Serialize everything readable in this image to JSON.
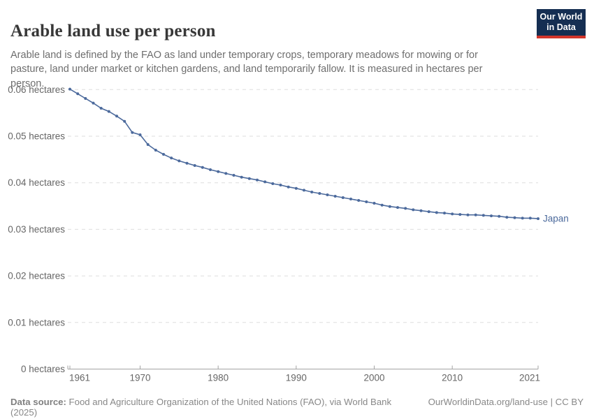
{
  "header": {
    "title": "Arable land use per person",
    "subtitle": "Arable land is defined by the FAO as land under temporary crops, temporary meadows for mowing or for pasture, land under market or kitchen gardens, and land temporarily fallow. It is measured in hectares per person.",
    "logo": {
      "line1": "Our World",
      "line2": "in Data",
      "bg_color": "#152e52",
      "stripe_color": "#d2352b"
    }
  },
  "chart_data": {
    "type": "line",
    "title": "Arable land use per person",
    "unit": "hectares",
    "xlim": [
      1961,
      2021
    ],
    "ylim": [
      0,
      0.06
    ],
    "grid": "horizontal-dashed",
    "legend_position": "end-of-line-label",
    "x_ticks": [
      {
        "year": 1961,
        "label": "1961"
      },
      {
        "year": 1970,
        "label": "1970"
      },
      {
        "year": 1980,
        "label": "1980"
      },
      {
        "year": 1990,
        "label": "1990"
      },
      {
        "year": 2000,
        "label": "2000"
      },
      {
        "year": 2010,
        "label": "2010"
      },
      {
        "year": 2021,
        "label": "2021"
      }
    ],
    "y_ticks": [
      {
        "value": 0,
        "label": "0 hectares"
      },
      {
        "value": 0.01,
        "label": "0.01 hectares"
      },
      {
        "value": 0.02,
        "label": "0.02 hectares"
      },
      {
        "value": 0.03,
        "label": "0.03 hectares"
      },
      {
        "value": 0.04,
        "label": "0.04 hectares"
      },
      {
        "value": 0.05,
        "label": "0.05 hectares"
      },
      {
        "value": 0.06,
        "label": "0.06 hectares"
      }
    ],
    "series": [
      {
        "name": "Japan",
        "color": "#4C6A9C",
        "x": [
          1961,
          1962,
          1963,
          1964,
          1965,
          1966,
          1967,
          1968,
          1969,
          1970,
          1971,
          1972,
          1973,
          1974,
          1975,
          1976,
          1977,
          1978,
          1979,
          1980,
          1981,
          1982,
          1983,
          1984,
          1985,
          1986,
          1987,
          1988,
          1989,
          1990,
          1991,
          1992,
          1993,
          1994,
          1995,
          1996,
          1997,
          1998,
          1999,
          2000,
          2001,
          2002,
          2003,
          2004,
          2005,
          2006,
          2007,
          2008,
          2009,
          2010,
          2011,
          2012,
          2013,
          2014,
          2015,
          2016,
          2017,
          2018,
          2019,
          2020,
          2021
        ],
        "values": [
          0.0601,
          0.0591,
          0.0581,
          0.0571,
          0.056,
          0.0553,
          0.0543,
          0.0532,
          0.0508,
          0.0503,
          0.0482,
          0.047,
          0.0461,
          0.0453,
          0.0447,
          0.0442,
          0.0437,
          0.0433,
          0.0428,
          0.0424,
          0.042,
          0.0416,
          0.0412,
          0.0409,
          0.0406,
          0.0402,
          0.0398,
          0.0395,
          0.0391,
          0.0388,
          0.0384,
          0.038,
          0.0377,
          0.0374,
          0.0371,
          0.0368,
          0.0365,
          0.0362,
          0.0359,
          0.0356,
          0.0352,
          0.0349,
          0.0347,
          0.0345,
          0.0342,
          0.034,
          0.0338,
          0.0336,
          0.0335,
          0.0333,
          0.0332,
          0.0331,
          0.0331,
          0.033,
          0.0329,
          0.0328,
          0.0326,
          0.0325,
          0.0324,
          0.0324,
          0.0323
        ]
      }
    ],
    "colors": {
      "gridline": "#dedede",
      "axis": "#a3a3a3",
      "tick_label": "#666666"
    }
  },
  "footer": {
    "source_label": "Data source:",
    "source_text": " Food and Agriculture Organization of the United Nations (FAO), via World Bank (2025)",
    "link_text": "OurWorldinData.org/land-use | CC BY"
  }
}
